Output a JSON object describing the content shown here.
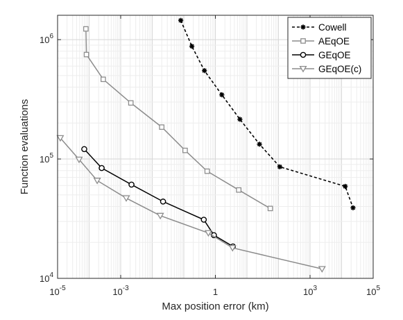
{
  "chart_data": {
    "type": "line",
    "xlabel": "Max position error (km)",
    "ylabel": "Function evaluations",
    "xscale": "log",
    "yscale": "log",
    "xlim": [
      1e-05,
      100000
    ],
    "ylim": [
      10000,
      1600000
    ],
    "grid": true,
    "legend_position": "top-right",
    "x_ticks": [
      {
        "value": 1e-05,
        "base": "10",
        "exp": "-5"
      },
      {
        "value": 0.001,
        "base": "10",
        "exp": "-3"
      },
      {
        "value": 1,
        "base": "1",
        "exp": ""
      },
      {
        "value": 1000,
        "base": "10",
        "exp": "3"
      },
      {
        "value": 100000,
        "base": "10",
        "exp": "5"
      }
    ],
    "y_ticks": [
      {
        "value": 10000,
        "base": "10",
        "exp": "4"
      },
      {
        "value": 100000,
        "base": "10",
        "exp": "5"
      },
      {
        "value": 1000000,
        "base": "10",
        "exp": "6"
      }
    ],
    "series": [
      {
        "name": "Cowell",
        "color": "#000000",
        "dash": "4,3",
        "marker": "star",
        "points": [
          [
            0.08,
            1450000
          ],
          [
            0.18,
            880000
          ],
          [
            0.45,
            550000
          ],
          [
            1.6,
            345000
          ],
          [
            6.0,
            215000
          ],
          [
            25,
            133000
          ],
          [
            110,
            86000
          ],
          [
            13000,
            59000
          ],
          [
            23000,
            39000
          ]
        ]
      },
      {
        "name": "AEqOE",
        "color": "#8c8c8c",
        "dash": "",
        "marker": "square",
        "points": [
          [
            7.9e-05,
            1230000
          ],
          [
            8.2e-05,
            750000
          ],
          [
            0.00028,
            465000
          ],
          [
            0.0021,
            295000
          ],
          [
            0.02,
            185000
          ],
          [
            0.11,
            118000
          ],
          [
            0.55,
            79000
          ],
          [
            5.5,
            55000
          ],
          [
            55,
            38500
          ]
        ]
      },
      {
        "name": "GEqOE",
        "color": "#000000",
        "dash": "",
        "marker": "circle",
        "points": [
          [
            7e-05,
            121000
          ],
          [
            0.00025,
            84000
          ],
          [
            0.0022,
            61000
          ],
          [
            0.022,
            44000
          ],
          [
            0.43,
            31000
          ],
          [
            0.9,
            23000
          ],
          [
            3.6,
            18500
          ]
        ]
      },
      {
        "name": "GEqOE(c)",
        "color": "#8c8c8c",
        "dash": "",
        "marker": "triangle",
        "points": [
          [
            1.22e-05,
            150000
          ],
          [
            4.8e-05,
            99000
          ],
          [
            0.00018,
            66000
          ],
          [
            0.0015,
            47000
          ],
          [
            0.018,
            33500
          ],
          [
            0.6,
            24000
          ],
          [
            3.5,
            18000
          ],
          [
            2400,
            12000
          ]
        ]
      }
    ]
  }
}
